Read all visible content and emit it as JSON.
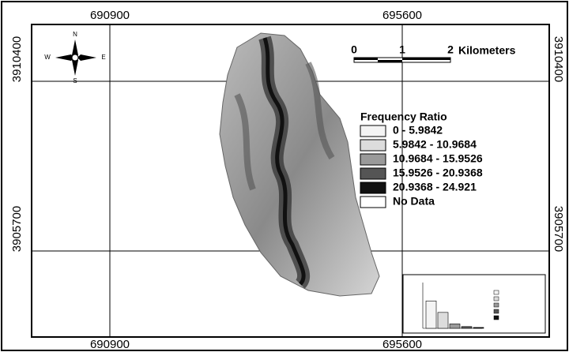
{
  "map": {
    "coordinates": {
      "top": [
        690900,
        695600
      ],
      "bottom": [
        690900,
        695600
      ],
      "left": [
        3910400,
        3905700
      ],
      "right": [
        3910400,
        3905700
      ]
    },
    "north_arrow": {
      "n": "N",
      "e": "E",
      "s": "S",
      "w": "W"
    },
    "scale_bar": {
      "ticks": [
        "0",
        "1",
        "2"
      ],
      "unit": "Kilometers"
    },
    "legend": {
      "title": "Frequency Ratio",
      "items": [
        {
          "label": "0 - 5.9842",
          "color": "#f4f4f4"
        },
        {
          "label": "5.9842 - 10.9684",
          "color": "#dcdcdc"
        },
        {
          "label": "10.9684 - 15.9526",
          "color": "#9a9a9a"
        },
        {
          "label": "15.9526 - 20.9368",
          "color": "#555555"
        },
        {
          "label": "20.9368 - 24.921",
          "color": "#111111"
        },
        {
          "label": "No Data",
          "color": "#ffffff"
        }
      ]
    },
    "inset_chart": {
      "type": "bar",
      "values": [
        62,
        36,
        10,
        4,
        2
      ],
      "colors": [
        "#f4f4f4",
        "#dcdcdc",
        "#9a9a9a",
        "#555555",
        "#111111"
      ],
      "ylim": [
        0,
        100
      ]
    }
  }
}
